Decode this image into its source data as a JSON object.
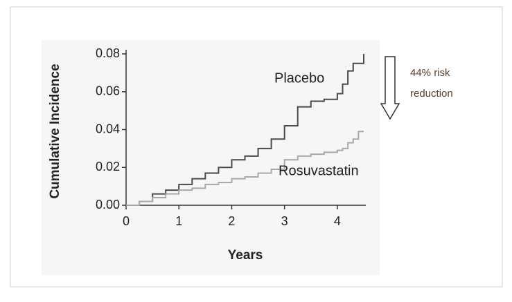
{
  "chart_data": {
    "type": "step",
    "xlabel": "Years",
    "ylabel": "Cumulative Incidence",
    "x": [
      0,
      0.25,
      0.5,
      0.75,
      1,
      1.25,
      1.5,
      1.75,
      2,
      2.25,
      2.5,
      2.75,
      3,
      3.25,
      3.5,
      3.75,
      4,
      4.1,
      4.2,
      4.3,
      4.4,
      4.5
    ],
    "series": [
      {
        "name": "Placebo",
        "color": "#4a4a4a",
        "values": [
          0,
          0.002,
          0.006,
          0.008,
          0.011,
          0.014,
          0.017,
          0.02,
          0.024,
          0.026,
          0.03,
          0.035,
          0.042,
          0.052,
          0.055,
          0.056,
          0.059,
          0.064,
          0.071,
          0.075,
          0.075,
          0.08
        ]
      },
      {
        "name": "Rosuvastatin",
        "color": "#a8a8a8",
        "values": [
          0,
          0.002,
          0.004,
          0.006,
          0.008,
          0.009,
          0.011,
          0.012,
          0.014,
          0.015,
          0.017,
          0.019,
          0.024,
          0.026,
          0.027,
          0.028,
          0.029,
          0.03,
          0.033,
          0.035,
          0.039,
          0.039
        ]
      }
    ],
    "xlim": [
      0,
      4.5
    ],
    "ylim": [
      0,
      0.08
    ],
    "xticks": [
      0,
      1,
      2,
      3,
      4
    ],
    "yticks": [
      {
        "value": 0,
        "label": "0.00"
      },
      {
        "value": 0.02,
        "label": "0.02"
      },
      {
        "value": 0.04,
        "label": "0.04"
      },
      {
        "value": 0.06,
        "label": "0.06"
      },
      {
        "value": 0.08,
        "label": "0.08"
      }
    ],
    "annotation": [
      "44% risk",
      "reduction"
    ]
  }
}
